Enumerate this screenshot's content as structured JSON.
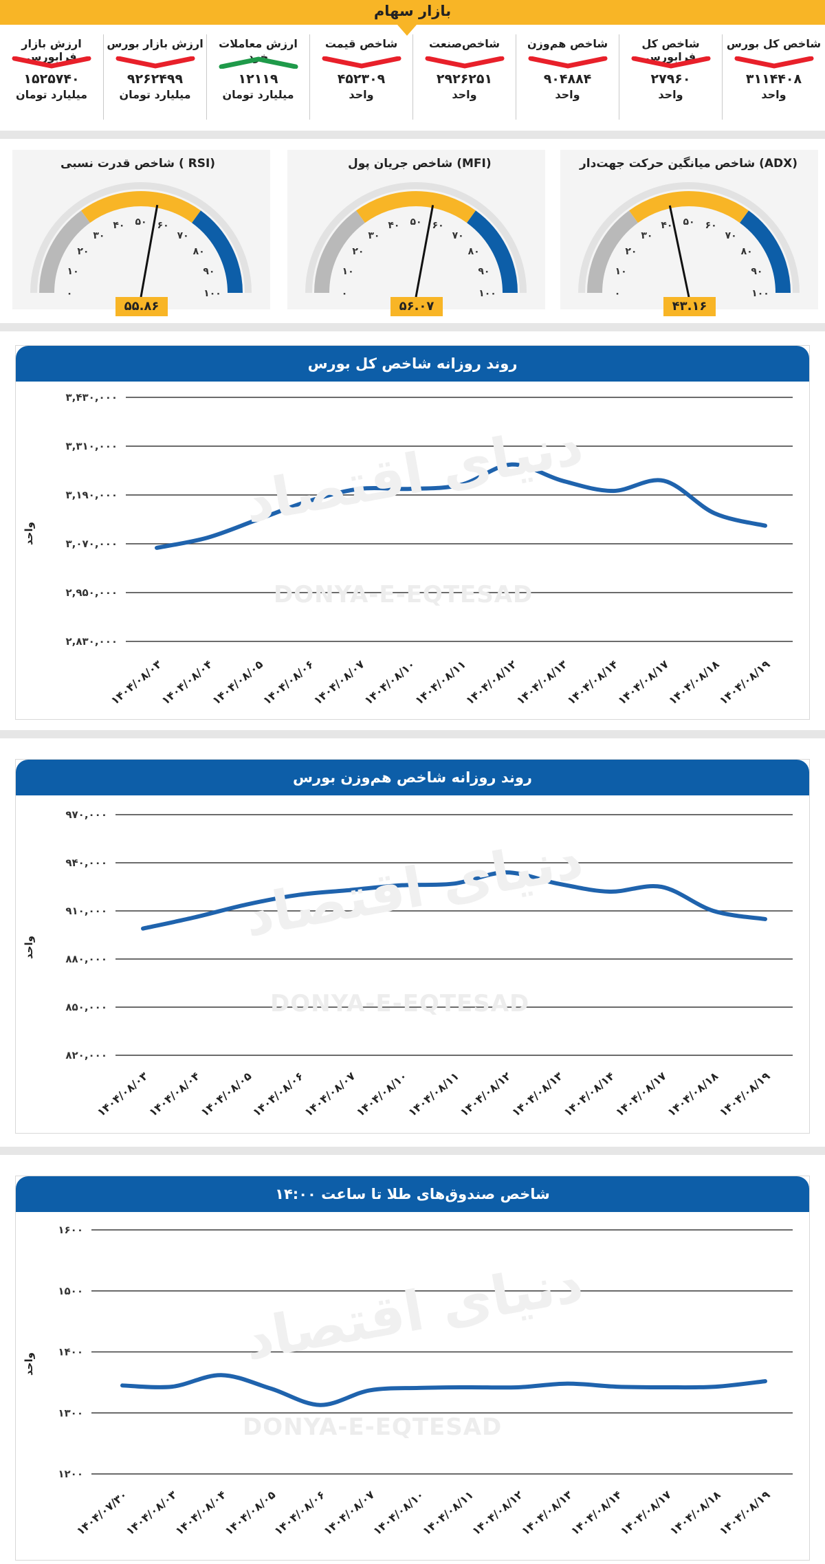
{
  "header": {
    "title": "بازار سهام"
  },
  "stats": [
    {
      "label": "شاخص کل بورس",
      "value": "۳۱۱۴۴۰۸",
      "unit": "واحد",
      "trend": "down"
    },
    {
      "label": "شاخص کل فرابورس",
      "value": "۲۷۹۶۰",
      "unit": "واحد",
      "trend": "down"
    },
    {
      "label": "شاخص هم‌وزن",
      "value": "۹۰۴۸۸۴",
      "unit": "واحد",
      "trend": "down"
    },
    {
      "label": "شاخص‌صنعت",
      "value": "۲۹۲۶۲۵۱",
      "unit": "واحد",
      "trend": "down"
    },
    {
      "label": "شاخص قیمت",
      "value": "۴۵۲۳۰۹",
      "unit": "واحد",
      "trend": "down"
    },
    {
      "label": "ارزش معاملات خرد",
      "value": "۱۲۱۱۹",
      "unit": "میلیارد تومان",
      "trend": "up"
    },
    {
      "label": "ارزش بازار بورس",
      "value": "۹۲۶۲۴۹۹",
      "unit": "میلیارد تومان",
      "trend": "down"
    },
    {
      "label": "ارزش بازار فرابورس",
      "value": "۱۵۲۵۷۴۰",
      "unit": "میلیارد تومان",
      "trend": "down"
    }
  ],
  "colors": {
    "accent": "#f8b526",
    "blue": "#0d5ea8",
    "line": "#1f63ad",
    "down": "#e8202a",
    "up": "#1f9a4a",
    "gauge_grey": "#b9b9b9"
  },
  "gauges": [
    {
      "title": "شاخص میانگین حرکت جهت‌دار (ADX)",
      "value": 43.16,
      "value_text": "۴۳.۱۶"
    },
    {
      "title": "شاخص جریان پول (MFI)",
      "value": 56.07,
      "value_text": "۵۶.۰۷"
    },
    {
      "title": "شاخص قدرت نسبی ( RSI)",
      "value": 55.86,
      "value_text": "۵۵.۸۶"
    }
  ],
  "gauge_ticks": [
    "۰",
    "۱۰",
    "۲۰",
    "۳۰",
    "۴۰",
    "۵۰",
    "۶۰",
    "۷۰",
    "۸۰",
    "۹۰",
    "۱۰۰"
  ],
  "watermark": {
    "brand": "DONYA-E-EQTESAD",
    "brand_fa": "دنیای اقتصاد"
  },
  "chart_data": [
    {
      "type": "line",
      "title": "روند روزانه شاخص کل بورس",
      "ylabel": "واحد",
      "ylim": [
        2830000,
        3430000
      ],
      "yticks": [
        2830000,
        2950000,
        3070000,
        3190000,
        3310000,
        3430000
      ],
      "ytick_labels": [
        "۲,۸۳۰,۰۰۰",
        "۲,۹۵۰,۰۰۰",
        "۳,۰۷۰,۰۰۰",
        "۳,۱۹۰,۰۰۰",
        "۳,۳۱۰,۰۰۰",
        "۳,۴۳۰,۰۰۰"
      ],
      "categories": [
        "۱۴۰۴/۰۸/۰۳",
        "۱۴۰۴/۰۸/۰۴",
        "۱۴۰۴/۰۸/۰۵",
        "۱۴۰۴/۰۸/۰۶",
        "۱۴۰۴/۰۸/۰۷",
        "۱۴۰۴/۰۸/۱۰",
        "۱۴۰۴/۰۸/۱۱",
        "۱۴۰۴/۰۸/۱۲",
        "۱۴۰۴/۰۸/۱۳",
        "۱۴۰۴/۰۸/۱۴",
        "۱۴۰۴/۰۸/۱۷",
        "۱۴۰۴/۰۸/۱۸",
        "۱۴۰۴/۰۸/۱۹"
      ],
      "values": [
        3060000,
        3085000,
        3130000,
        3175000,
        3205000,
        3205000,
        3215000,
        3265000,
        3225000,
        3200000,
        3225000,
        3145000,
        3114408
      ]
    },
    {
      "type": "line",
      "title": "روند روزانه شاخص هم‌وزن بورس",
      "ylabel": "واحد",
      "ylim": [
        820000,
        970000
      ],
      "yticks": [
        820000,
        850000,
        880000,
        910000,
        940000,
        970000
      ],
      "ytick_labels": [
        "۸۲۰,۰۰۰",
        "۸۵۰,۰۰۰",
        "۸۸۰,۰۰۰",
        "۹۱۰,۰۰۰",
        "۹۴۰,۰۰۰",
        "۹۷۰,۰۰۰"
      ],
      "categories": [
        "۱۴۰۴/۰۸/۰۳",
        "۱۴۰۴/۰۸/۰۴",
        "۱۴۰۴/۰۸/۰۵",
        "۱۴۰۴/۰۸/۰۶",
        "۱۴۰۴/۰۸/۰۷",
        "۱۴۰۴/۰۸/۱۰",
        "۱۴۰۴/۰۸/۱۱",
        "۱۴۰۴/۰۸/۱۲",
        "۱۴۰۴/۰۸/۱۳",
        "۱۴۰۴/۰۸/۱۴",
        "۱۴۰۴/۰۸/۱۷",
        "۱۴۰۴/۰۸/۱۸",
        "۱۴۰۴/۰۸/۱۹"
      ],
      "values": [
        899000,
        906000,
        914000,
        920000,
        923000,
        926000,
        927000,
        934000,
        927000,
        922000,
        925000,
        910000,
        904884
      ]
    },
    {
      "type": "line",
      "title": "شاخص صندوق‌های طلا تا ساعت ۱۴:۰۰",
      "ylabel": "واحد",
      "ylim": [
        1200,
        1600
      ],
      "yticks": [
        1200,
        1300,
        1400,
        1500,
        1600
      ],
      "ytick_labels": [
        "۱۲۰۰",
        "۱۳۰۰",
        "۱۴۰۰",
        "۱۵۰۰",
        "۱۶۰۰"
      ],
      "categories": [
        "۱۴۰۴/۰۷/۳۰",
        "۱۴۰۴/۰۸/۰۳",
        "۱۴۰۴/۰۸/۰۴",
        "۱۴۰۴/۰۸/۰۵",
        "۱۴۰۴/۰۸/۰۶",
        "۱۴۰۴/۰۸/۰۷",
        "۱۴۰۴/۰۸/۱۰",
        "۱۴۰۴/۰۸/۱۱",
        "۱۴۰۴/۰۸/۱۲",
        "۱۴۰۴/۰۸/۱۳",
        "۱۴۰۴/۰۸/۱۴",
        "۱۴۰۴/۰۸/۱۷",
        "۱۴۰۴/۰۸/۱۸",
        "۱۴۰۴/۰۸/۱۹"
      ],
      "values": [
        1345,
        1343,
        1362,
        1340,
        1313,
        1337,
        1341,
        1342,
        1342,
        1348,
        1343,
        1342,
        1343,
        1352
      ]
    }
  ]
}
